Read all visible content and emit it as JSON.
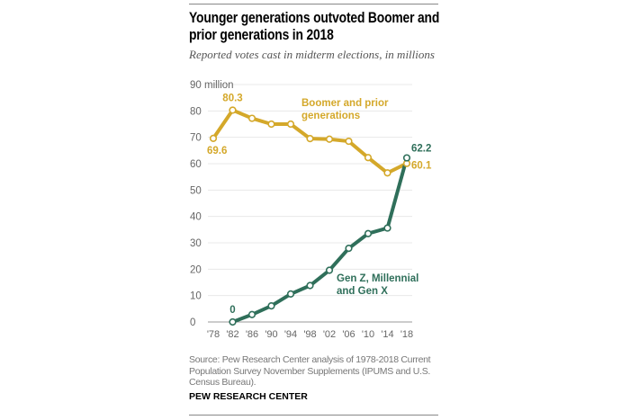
{
  "title": "Younger generations outvoted Boomer and prior generations in 2018",
  "subtitle": "Reported votes cast in midterm elections, in millions",
  "source": "Source: Pew Research Center analysis of 1978-2018 Current Population Survey November Supplements (IPUMS and U.S. Census Bureau).",
  "brand": "PEW RESEARCH CENTER",
  "chart_data": {
    "type": "line",
    "title": "Younger generations outvoted Boomer and prior generations in 2018",
    "subtitle": "Reported votes cast in midterm elections, in millions",
    "x": [
      1978,
      1982,
      1986,
      1990,
      1994,
      1998,
      2002,
      2006,
      2010,
      2014,
      2018
    ],
    "x_tick_labels": [
      "'78",
      "'82",
      "'86",
      "'90",
      "'94",
      "'98",
      "'02",
      "'06",
      "'10",
      "'14",
      "'18"
    ],
    "y_ticks": [
      0,
      10,
      20,
      30,
      40,
      50,
      60,
      70,
      80,
      90
    ],
    "y_tick_labels": [
      "0",
      "10",
      "20",
      "30",
      "40",
      "50",
      "60",
      "70",
      "80",
      "90 million"
    ],
    "ylim": [
      0,
      90
    ],
    "grid": true,
    "series": [
      {
        "name": "Boomer and prior generations",
        "color": "#d4a82a",
        "values": [
          69.6,
          80.3,
          77.2,
          75.0,
          75.0,
          69.5,
          69.3,
          68.5,
          62.3,
          56.5,
          60.1
        ],
        "data_labels": {
          "0": "69.6",
          "1": "80.3",
          "10": "60.1"
        }
      },
      {
        "name": "Gen Z, Millennial and Gen X",
        "color": "#2f6f5a",
        "values": [
          null,
          0,
          2.8,
          6.1,
          10.6,
          13.8,
          19.6,
          27.9,
          33.5,
          35.6,
          62.2
        ],
        "data_labels": {
          "1": "0",
          "10": "62.2"
        }
      }
    ]
  }
}
